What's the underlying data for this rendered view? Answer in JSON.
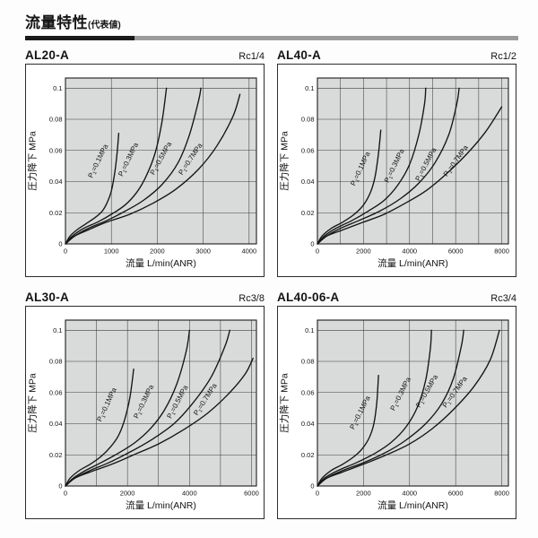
{
  "header": {
    "title": "流量特性",
    "suffix": "(代表値)"
  },
  "style": {
    "bar_black": "#1a1a1a",
    "bar_gray": "#9c9c9c",
    "plot_bg": "#d9dada",
    "grid": "#3d3d3d",
    "border": "#1c1c1c",
    "curve": "#141414",
    "text": "#141414"
  },
  "axes": {
    "x_label": "流量 L/min(ANR)",
    "y_label": "圧力降下 MPa",
    "y_ticks": [
      "0",
      "0.02",
      "0.04",
      "0.06",
      "0.08",
      "0.1"
    ],
    "y_tick_values": [
      0,
      0.02,
      0.04,
      0.06,
      0.08,
      0.1
    ],
    "y_plot_max": 0.1065
  },
  "chart_data": [
    {
      "type": "line",
      "title": "AL20-A",
      "port": "Rc1/4",
      "xlabel": "流量 L/min(ANR)",
      "ylabel": "圧力降下 MPa",
      "x_ticks": [
        0,
        1000,
        2000,
        3000,
        4000
      ],
      "x_grid_step": 1000,
      "x_plot_max": 4160,
      "ylim": [
        0,
        0.1065
      ],
      "series": [
        {
          "label": "P1=0.1MPa",
          "label_anchor": [
            580,
            0.042
          ],
          "label_angle": -64,
          "points": [
            [
              0,
              0
            ],
            [
              100,
              0.005
            ],
            [
              250,
              0.009
            ],
            [
              450,
              0.013
            ],
            [
              650,
              0.017
            ],
            [
              800,
              0.021
            ],
            [
              900,
              0.026
            ],
            [
              1000,
              0.034
            ],
            [
              1080,
              0.047
            ],
            [
              1130,
              0.06
            ],
            [
              1160,
              0.071
            ]
          ]
        },
        {
          "label": "P1=0.3MPa",
          "label_anchor": [
            1240,
            0.043
          ],
          "label_angle": -64,
          "points": [
            [
              0,
              0
            ],
            [
              150,
              0.005
            ],
            [
              400,
              0.01
            ],
            [
              700,
              0.014
            ],
            [
              1000,
              0.019
            ],
            [
              1300,
              0.025
            ],
            [
              1550,
              0.033
            ],
            [
              1750,
              0.043
            ],
            [
              1950,
              0.058
            ],
            [
              2100,
              0.078
            ],
            [
              2200,
              0.1
            ]
          ]
        },
        {
          "label": "P1=0.5MPa",
          "label_anchor": [
            1930,
            0.044
          ],
          "label_angle": -61,
          "points": [
            [
              0,
              0
            ],
            [
              200,
              0.005
            ],
            [
              500,
              0.01
            ],
            [
              900,
              0.015
            ],
            [
              1300,
              0.021
            ],
            [
              1700,
              0.028
            ],
            [
              2100,
              0.038
            ],
            [
              2450,
              0.052
            ],
            [
              2700,
              0.07
            ],
            [
              2900,
              0.092
            ],
            [
              2950,
              0.1
            ]
          ]
        },
        {
          "label": "P1=0.7MPa",
          "label_anchor": [
            2540,
            0.044
          ],
          "label_angle": -56,
          "points": [
            [
              0,
              0
            ],
            [
              200,
              0.005
            ],
            [
              500,
              0.009
            ],
            [
              900,
              0.014
            ],
            [
              1400,
              0.019
            ],
            [
              1900,
              0.026
            ],
            [
              2400,
              0.035
            ],
            [
              2900,
              0.048
            ],
            [
              3300,
              0.063
            ],
            [
              3650,
              0.082
            ],
            [
              3800,
              0.096
            ]
          ]
        }
      ]
    },
    {
      "type": "line",
      "title": "AL40-A",
      "port": "Rc1/2",
      "xlabel": "流量 L/min(ANR)",
      "ylabel": "圧力降下 MPa",
      "x_ticks": [
        0,
        2000,
        4000,
        6000,
        8000
      ],
      "x_grid_step": 1000,
      "x_plot_max": 8290,
      "ylim": [
        0,
        0.1065
      ],
      "series": [
        {
          "label": "P1=0.1MPa",
          "label_anchor": [
            1620,
            0.037
          ],
          "label_angle": -65,
          "points": [
            [
              0,
              0
            ],
            [
              200,
              0.005
            ],
            [
              600,
              0.01
            ],
            [
              1100,
              0.014
            ],
            [
              1600,
              0.019
            ],
            [
              2000,
              0.025
            ],
            [
              2300,
              0.033
            ],
            [
              2500,
              0.043
            ],
            [
              2650,
              0.058
            ],
            [
              2750,
              0.073
            ]
          ]
        },
        {
          "label": "P1=0.3MPa",
          "label_anchor": [
            3080,
            0.039
          ],
          "label_angle": -64,
          "points": [
            [
              0,
              0
            ],
            [
              300,
              0.005
            ],
            [
              800,
              0.01
            ],
            [
              1500,
              0.015
            ],
            [
              2200,
              0.021
            ],
            [
              2900,
              0.028
            ],
            [
              3500,
              0.038
            ],
            [
              4000,
              0.051
            ],
            [
              4400,
              0.07
            ],
            [
              4650,
              0.09
            ],
            [
              4700,
              0.1
            ]
          ]
        },
        {
          "label": "P1=0.5MPa",
          "label_anchor": [
            4420,
            0.04
          ],
          "label_angle": -62,
          "points": [
            [
              0,
              0
            ],
            [
              400,
              0.005
            ],
            [
              1000,
              0.01
            ],
            [
              1800,
              0.015
            ],
            [
              2700,
              0.021
            ],
            [
              3600,
              0.029
            ],
            [
              4400,
              0.039
            ],
            [
              5100,
              0.052
            ],
            [
              5700,
              0.07
            ],
            [
              6050,
              0.09
            ],
            [
              6150,
              0.1
            ]
          ]
        },
        {
          "label": "P1=0.7MPa",
          "label_anchor": [
            5620,
            0.043
          ],
          "label_angle": -54,
          "points": [
            [
              0,
              0
            ],
            [
              400,
              0.005
            ],
            [
              1100,
              0.009
            ],
            [
              2000,
              0.014
            ],
            [
              2900,
              0.019
            ],
            [
              3800,
              0.026
            ],
            [
              4700,
              0.034
            ],
            [
              5600,
              0.045
            ],
            [
              6500,
              0.058
            ],
            [
              7300,
              0.072
            ],
            [
              8000,
              0.088
            ]
          ]
        }
      ]
    },
    {
      "type": "line",
      "title": "AL30-A",
      "port": "Rc3/8",
      "xlabel": "流量 L/min(ANR)",
      "ylabel": "圧力降下 MPa",
      "x_ticks": [
        0,
        2000,
        4000,
        6000
      ],
      "x_grid_step": 1000,
      "x_plot_max": 6160,
      "ylim": [
        0,
        0.1065
      ],
      "series": [
        {
          "label": "P1=0.1MPa",
          "label_anchor": [
            1150,
            0.041
          ],
          "label_angle": -65,
          "points": [
            [
              0,
              0
            ],
            [
              150,
              0.005
            ],
            [
              450,
              0.01
            ],
            [
              800,
              0.014
            ],
            [
              1150,
              0.019
            ],
            [
              1450,
              0.025
            ],
            [
              1700,
              0.032
            ],
            [
              1900,
              0.042
            ],
            [
              2080,
              0.057
            ],
            [
              2200,
              0.075
            ]
          ]
        },
        {
          "label": "P1=0.3MPa",
          "label_anchor": [
            2330,
            0.043
          ],
          "label_angle": -64,
          "points": [
            [
              0,
              0
            ],
            [
              250,
              0.005
            ],
            [
              650,
              0.01
            ],
            [
              1150,
              0.015
            ],
            [
              1700,
              0.021
            ],
            [
              2250,
              0.028
            ],
            [
              2750,
              0.037
            ],
            [
              3200,
              0.049
            ],
            [
              3600,
              0.066
            ],
            [
              3900,
              0.087
            ],
            [
              4000,
              0.1
            ]
          ]
        },
        {
          "label": "P1=0.5MPa",
          "label_anchor": [
            3400,
            0.043
          ],
          "label_angle": -62,
          "points": [
            [
              0,
              0
            ],
            [
              300,
              0.005
            ],
            [
              800,
              0.01
            ],
            [
              1400,
              0.015
            ],
            [
              2100,
              0.022
            ],
            [
              2800,
              0.03
            ],
            [
              3500,
              0.04
            ],
            [
              4100,
              0.053
            ],
            [
              4700,
              0.07
            ],
            [
              5150,
              0.09
            ],
            [
              5300,
              0.1
            ]
          ]
        },
        {
          "label": "P1=0.7MPa",
          "label_anchor": [
            4250,
            0.045
          ],
          "label_angle": -57,
          "points": [
            [
              0,
              0
            ],
            [
              300,
              0.005
            ],
            [
              800,
              0.009
            ],
            [
              1500,
              0.014
            ],
            [
              2200,
              0.02
            ],
            [
              3000,
              0.027
            ],
            [
              3800,
              0.036
            ],
            [
              4600,
              0.047
            ],
            [
              5300,
              0.06
            ],
            [
              5800,
              0.072
            ],
            [
              6050,
              0.082
            ]
          ]
        }
      ]
    },
    {
      "type": "line",
      "title": "AL40-06-A",
      "port": "Rc3/4",
      "xlabel": "流量 L/min(ANR)",
      "ylabel": "圧力降下 MPa",
      "x_ticks": [
        0,
        2000,
        4000,
        6000,
        8000
      ],
      "x_grid_step": 2000,
      "x_plot_max": 8290,
      "ylim": [
        0,
        0.1065
      ],
      "series": [
        {
          "label": "P1=0.1MPa",
          "label_anchor": [
            1580,
            0.036
          ],
          "label_angle": -63,
          "points": [
            [
              0,
              0
            ],
            [
              200,
              0.005
            ],
            [
              600,
              0.01
            ],
            [
              1100,
              0.014
            ],
            [
              1600,
              0.019
            ],
            [
              1950,
              0.024
            ],
            [
              2250,
              0.031
            ],
            [
              2450,
              0.04
            ],
            [
              2580,
              0.054
            ],
            [
              2650,
              0.071
            ]
          ]
        },
        {
          "label": "P1=0.3MPa",
          "label_anchor": [
            3340,
            0.048
          ],
          "label_angle": -63,
          "points": [
            [
              0,
              0
            ],
            [
              300,
              0.005
            ],
            [
              900,
              0.01
            ],
            [
              1700,
              0.015
            ],
            [
              2500,
              0.021
            ],
            [
              3200,
              0.028
            ],
            [
              3850,
              0.038
            ],
            [
              4350,
              0.051
            ],
            [
              4700,
              0.068
            ],
            [
              4900,
              0.088
            ],
            [
              4950,
              0.1
            ]
          ]
        },
        {
          "label": "P1=0.5MPa",
          "label_anchor": [
            4440,
            0.05
          ],
          "label_angle": -60,
          "points": [
            [
              0,
              0
            ],
            [
              400,
              0.005
            ],
            [
              1100,
              0.01
            ],
            [
              2000,
              0.015
            ],
            [
              2900,
              0.021
            ],
            [
              3800,
              0.029
            ],
            [
              4700,
              0.04
            ],
            [
              5400,
              0.053
            ],
            [
              5900,
              0.069
            ],
            [
              6250,
              0.09
            ],
            [
              6350,
              0.1
            ]
          ]
        },
        {
          "label": "P1=0.7MPa",
          "label_anchor": [
            5580,
            0.05
          ],
          "label_angle": -54,
          "points": [
            [
              0,
              0
            ],
            [
              400,
              0.005
            ],
            [
              1100,
              0.009
            ],
            [
              2000,
              0.014
            ],
            [
              3000,
              0.02
            ],
            [
              4000,
              0.027
            ],
            [
              5000,
              0.037
            ],
            [
              5900,
              0.049
            ],
            [
              6800,
              0.064
            ],
            [
              7500,
              0.081
            ],
            [
              7900,
              0.1
            ]
          ]
        }
      ]
    }
  ]
}
